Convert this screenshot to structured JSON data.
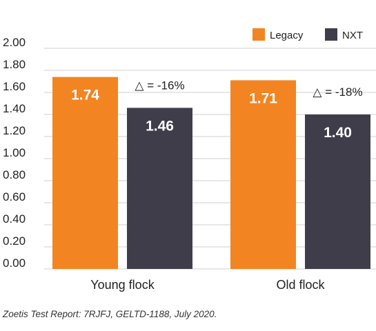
{
  "chart_data": {
    "type": "bar",
    "categories": [
      "Young flock",
      "Old flock"
    ],
    "series": [
      {
        "name": "Legacy",
        "values": [
          1.74,
          1.71
        ],
        "labels": [
          "1.74",
          "1.71"
        ],
        "color": "#f28522"
      },
      {
        "name": "NXT",
        "values": [
          1.46,
          1.4
        ],
        "labels": [
          "1.46",
          "1.40"
        ],
        "color": "#403d4b"
      }
    ],
    "yticks": [
      "0.00",
      "0.20",
      "0.40",
      "0.60",
      "0.80",
      "1.00",
      "1.20",
      "1.40",
      "1.60",
      "1.80",
      "2.00"
    ],
    "ylim": [
      0,
      2.0
    ],
    "grid": true,
    "legend_position": "top-right",
    "annotations": [
      "△ = -16%",
      "△ = -18%"
    ],
    "title": "",
    "xlabel": "",
    "ylabel": ""
  },
  "source": "Zoetis Test Report: 7RJFJ, GELTD-1188, July 2020."
}
